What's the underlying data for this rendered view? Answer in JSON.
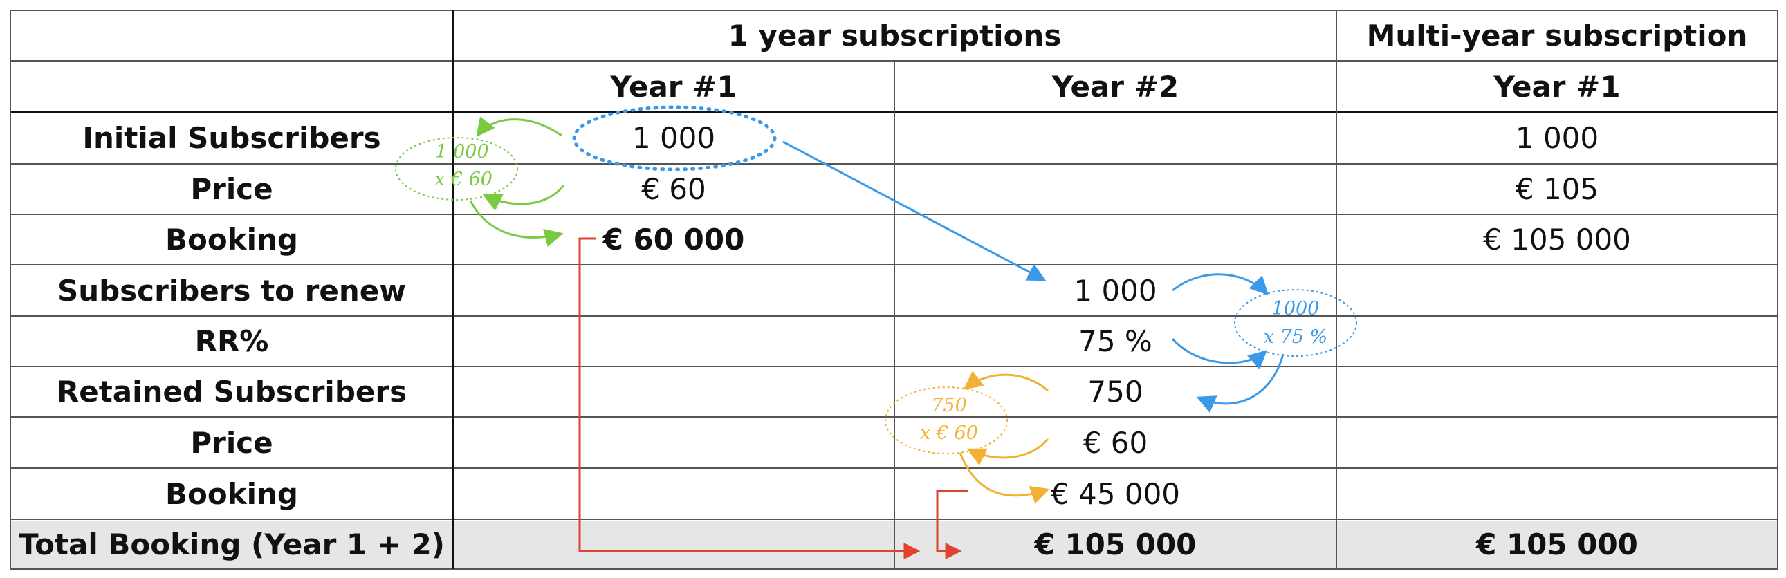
{
  "header": {
    "group_1yr": "1 year subscriptions",
    "group_multi": "Multi-year subscription",
    "col_1yr_y1": "Year #1",
    "col_1yr_y2": "Year #2",
    "col_multi_y1": "Year #1"
  },
  "rows": [
    {
      "label": "Initial Subscribers",
      "y1": "1 000",
      "y2": "",
      "multi": "1 000"
    },
    {
      "label": "Price",
      "y1": "€  60",
      "y2": "",
      "multi": "€  105"
    },
    {
      "label": "Booking",
      "y1": "€  60 000",
      "y2": "",
      "multi": "€  105 000"
    },
    {
      "label": "Subscribers to renew",
      "y1": "",
      "y2": "1 000",
      "multi": ""
    },
    {
      "label": "RR%",
      "y1": "",
      "y2": "75 %",
      "multi": ""
    },
    {
      "label": "Retained Subscribers",
      "y1": "",
      "y2": "750",
      "multi": ""
    },
    {
      "label": "Price",
      "y1": "",
      "y2": "€  60",
      "multi": ""
    },
    {
      "label": "Booking",
      "y1": "",
      "y2": "€  45 000",
      "multi": ""
    }
  ],
  "total": {
    "label": "Total Booking (Year 1 + 2)",
    "one_year": "€  105 000",
    "multi": "€  105 000"
  },
  "annotations": {
    "green_note_line1": "1 000",
    "green_note_line2": "x € 60",
    "blue_note_line1": "1000",
    "blue_note_line2": "x 75 %",
    "orange_note_line1": "750",
    "orange_note_line2": "x € 60"
  },
  "colors": {
    "grid": "#555555",
    "total_row_bg": "#e6e6e6",
    "green": "#7ac943",
    "blue": "#3b9ae8",
    "orange": "#f2b134",
    "red": "#e0432d"
  }
}
